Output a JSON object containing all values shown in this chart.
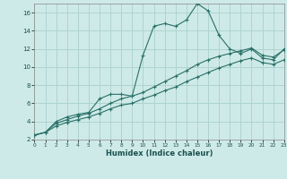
{
  "xlabel": "Humidex (Indice chaleur)",
  "xlim": [
    0,
    23
  ],
  "ylim": [
    2,
    17
  ],
  "yticks": [
    2,
    4,
    6,
    8,
    10,
    12,
    14,
    16
  ],
  "xticks": [
    0,
    1,
    2,
    3,
    4,
    5,
    6,
    7,
    8,
    9,
    10,
    11,
    12,
    13,
    14,
    15,
    16,
    17,
    18,
    19,
    20,
    21,
    22,
    23
  ],
  "bg_color": "#ceeae8",
  "grid_color": "#aed4d0",
  "line_color": "#2a7068",
  "series": [
    [
      2.5,
      2.8,
      4.0,
      4.5,
      4.8,
      5.0,
      6.5,
      7.0,
      7.0,
      6.8,
      11.3,
      14.5,
      14.8,
      14.5,
      15.2,
      17.0,
      16.2,
      13.5,
      12.0,
      11.5,
      12.0,
      11.0,
      10.8,
      12.0
    ],
    [
      2.5,
      2.8,
      3.8,
      4.2,
      4.6,
      4.9,
      5.4,
      6.0,
      6.5,
      6.8,
      7.2,
      7.8,
      8.4,
      9.0,
      9.6,
      10.3,
      10.8,
      11.2,
      11.5,
      11.8,
      12.1,
      11.3,
      11.1,
      11.9
    ],
    [
      2.5,
      2.8,
      3.5,
      3.9,
      4.2,
      4.5,
      4.9,
      5.4,
      5.8,
      6.0,
      6.5,
      6.9,
      7.4,
      7.8,
      8.4,
      8.9,
      9.4,
      9.9,
      10.3,
      10.7,
      11.0,
      10.5,
      10.3,
      10.8
    ]
  ]
}
